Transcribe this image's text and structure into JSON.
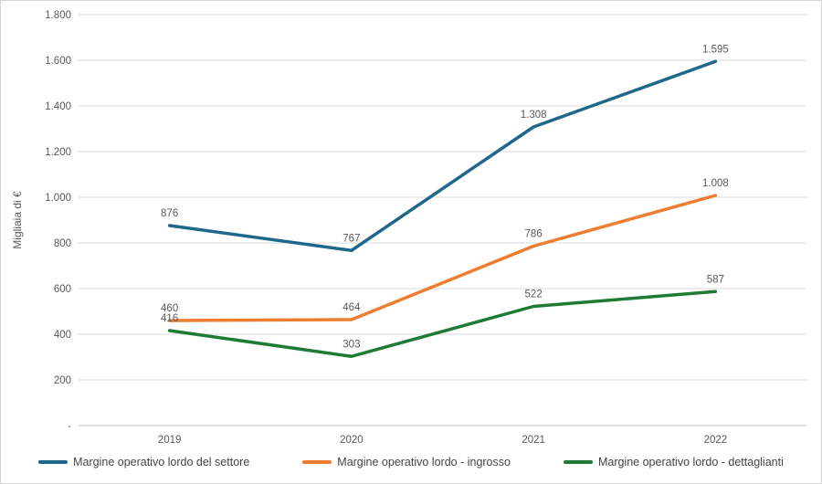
{
  "chart_data": {
    "type": "line",
    "title": "",
    "xlabel": "",
    "ylabel": "Migliaia di €",
    "categories": [
      "2019",
      "2020",
      "2021",
      "2022"
    ],
    "series": [
      {
        "name": "Margine operativo lordo del settore",
        "color": "#1F688C",
        "values": [
          876,
          767,
          1308,
          1595
        ],
        "labels": [
          "876",
          "767",
          "1.308",
          "1.595"
        ]
      },
      {
        "name": "Margine operativo lordo - ingrosso",
        "color": "#ED7D31",
        "values": [
          460,
          464,
          786,
          1008
        ],
        "labels": [
          "460",
          "464",
          "786",
          "1.008"
        ]
      },
      {
        "name": "Margine operativo lordo - dettaglianti",
        "color": "#1E7A34",
        "values": [
          416,
          303,
          522,
          587
        ],
        "labels": [
          "416",
          "303",
          "522",
          "587"
        ]
      }
    ],
    "ylim": [
      0,
      1800
    ],
    "ytick_step": 200,
    "ytick_labels": [
      "-",
      "200",
      "400",
      "600",
      "800",
      "1.000",
      "1.200",
      "1.400",
      "1.600",
      "1.800"
    ],
    "grid": true,
    "legend_position": "bottom",
    "colors": {
      "gridline": "#D9D9D9",
      "axis_line": "#BFBFBF",
      "tick_text": "#595959",
      "data_label_text": "#595959",
      "axis_title_text": "#595959",
      "legend_text": "#444444",
      "background": "#FFFFFF"
    }
  }
}
